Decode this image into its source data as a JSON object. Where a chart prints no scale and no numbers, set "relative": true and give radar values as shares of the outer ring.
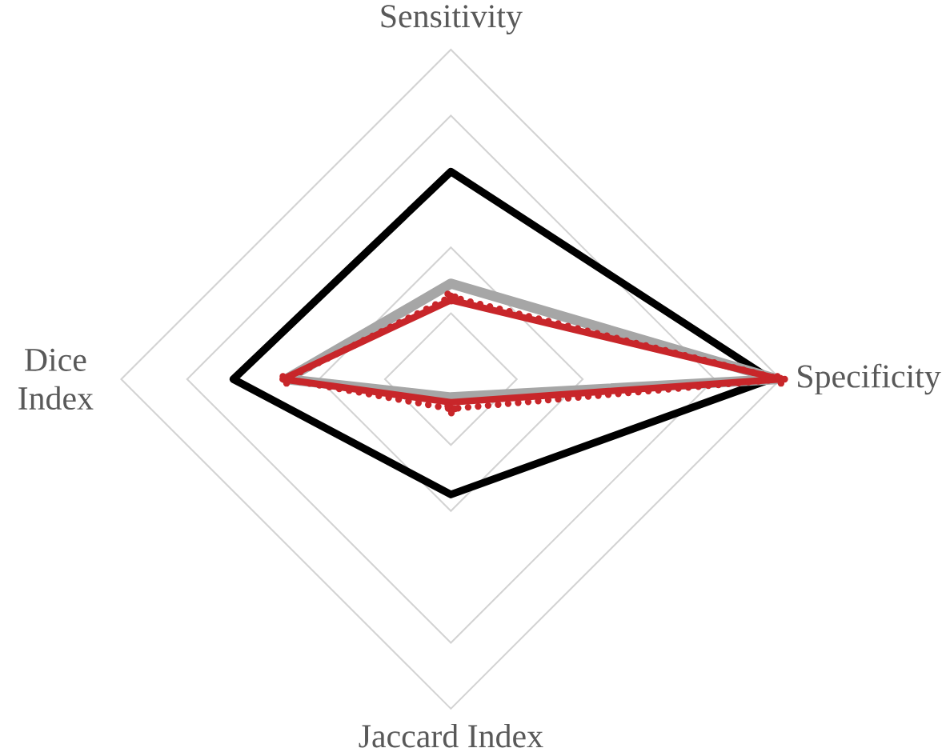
{
  "chart_data": {
    "type": "radar",
    "categories": [
      "Sensitivity",
      "Specificity",
      "Jaccard Index",
      "Dice Index"
    ],
    "relative": true,
    "grid": true,
    "marker": "none",
    "line_style": "solid",
    "series": [
      {
        "color": "#000000",
        "values": [
          0.63,
          0.97,
          0.35,
          0.66
        ]
      },
      {
        "color": "#a6a6a6",
        "values": [
          0.29,
          0.99,
          0.055,
          0.5
        ]
      },
      {
        "color": "#c8262a",
        "values": [
          0.24,
          1.0,
          0.07,
          0.51
        ]
      },
      {
        "color": "#c8262a",
        "values": [
          0.25,
          1.0,
          0.09,
          0.5
        ],
        "line_style": "dotted",
        "marker": "circle"
      }
    ]
  }
}
